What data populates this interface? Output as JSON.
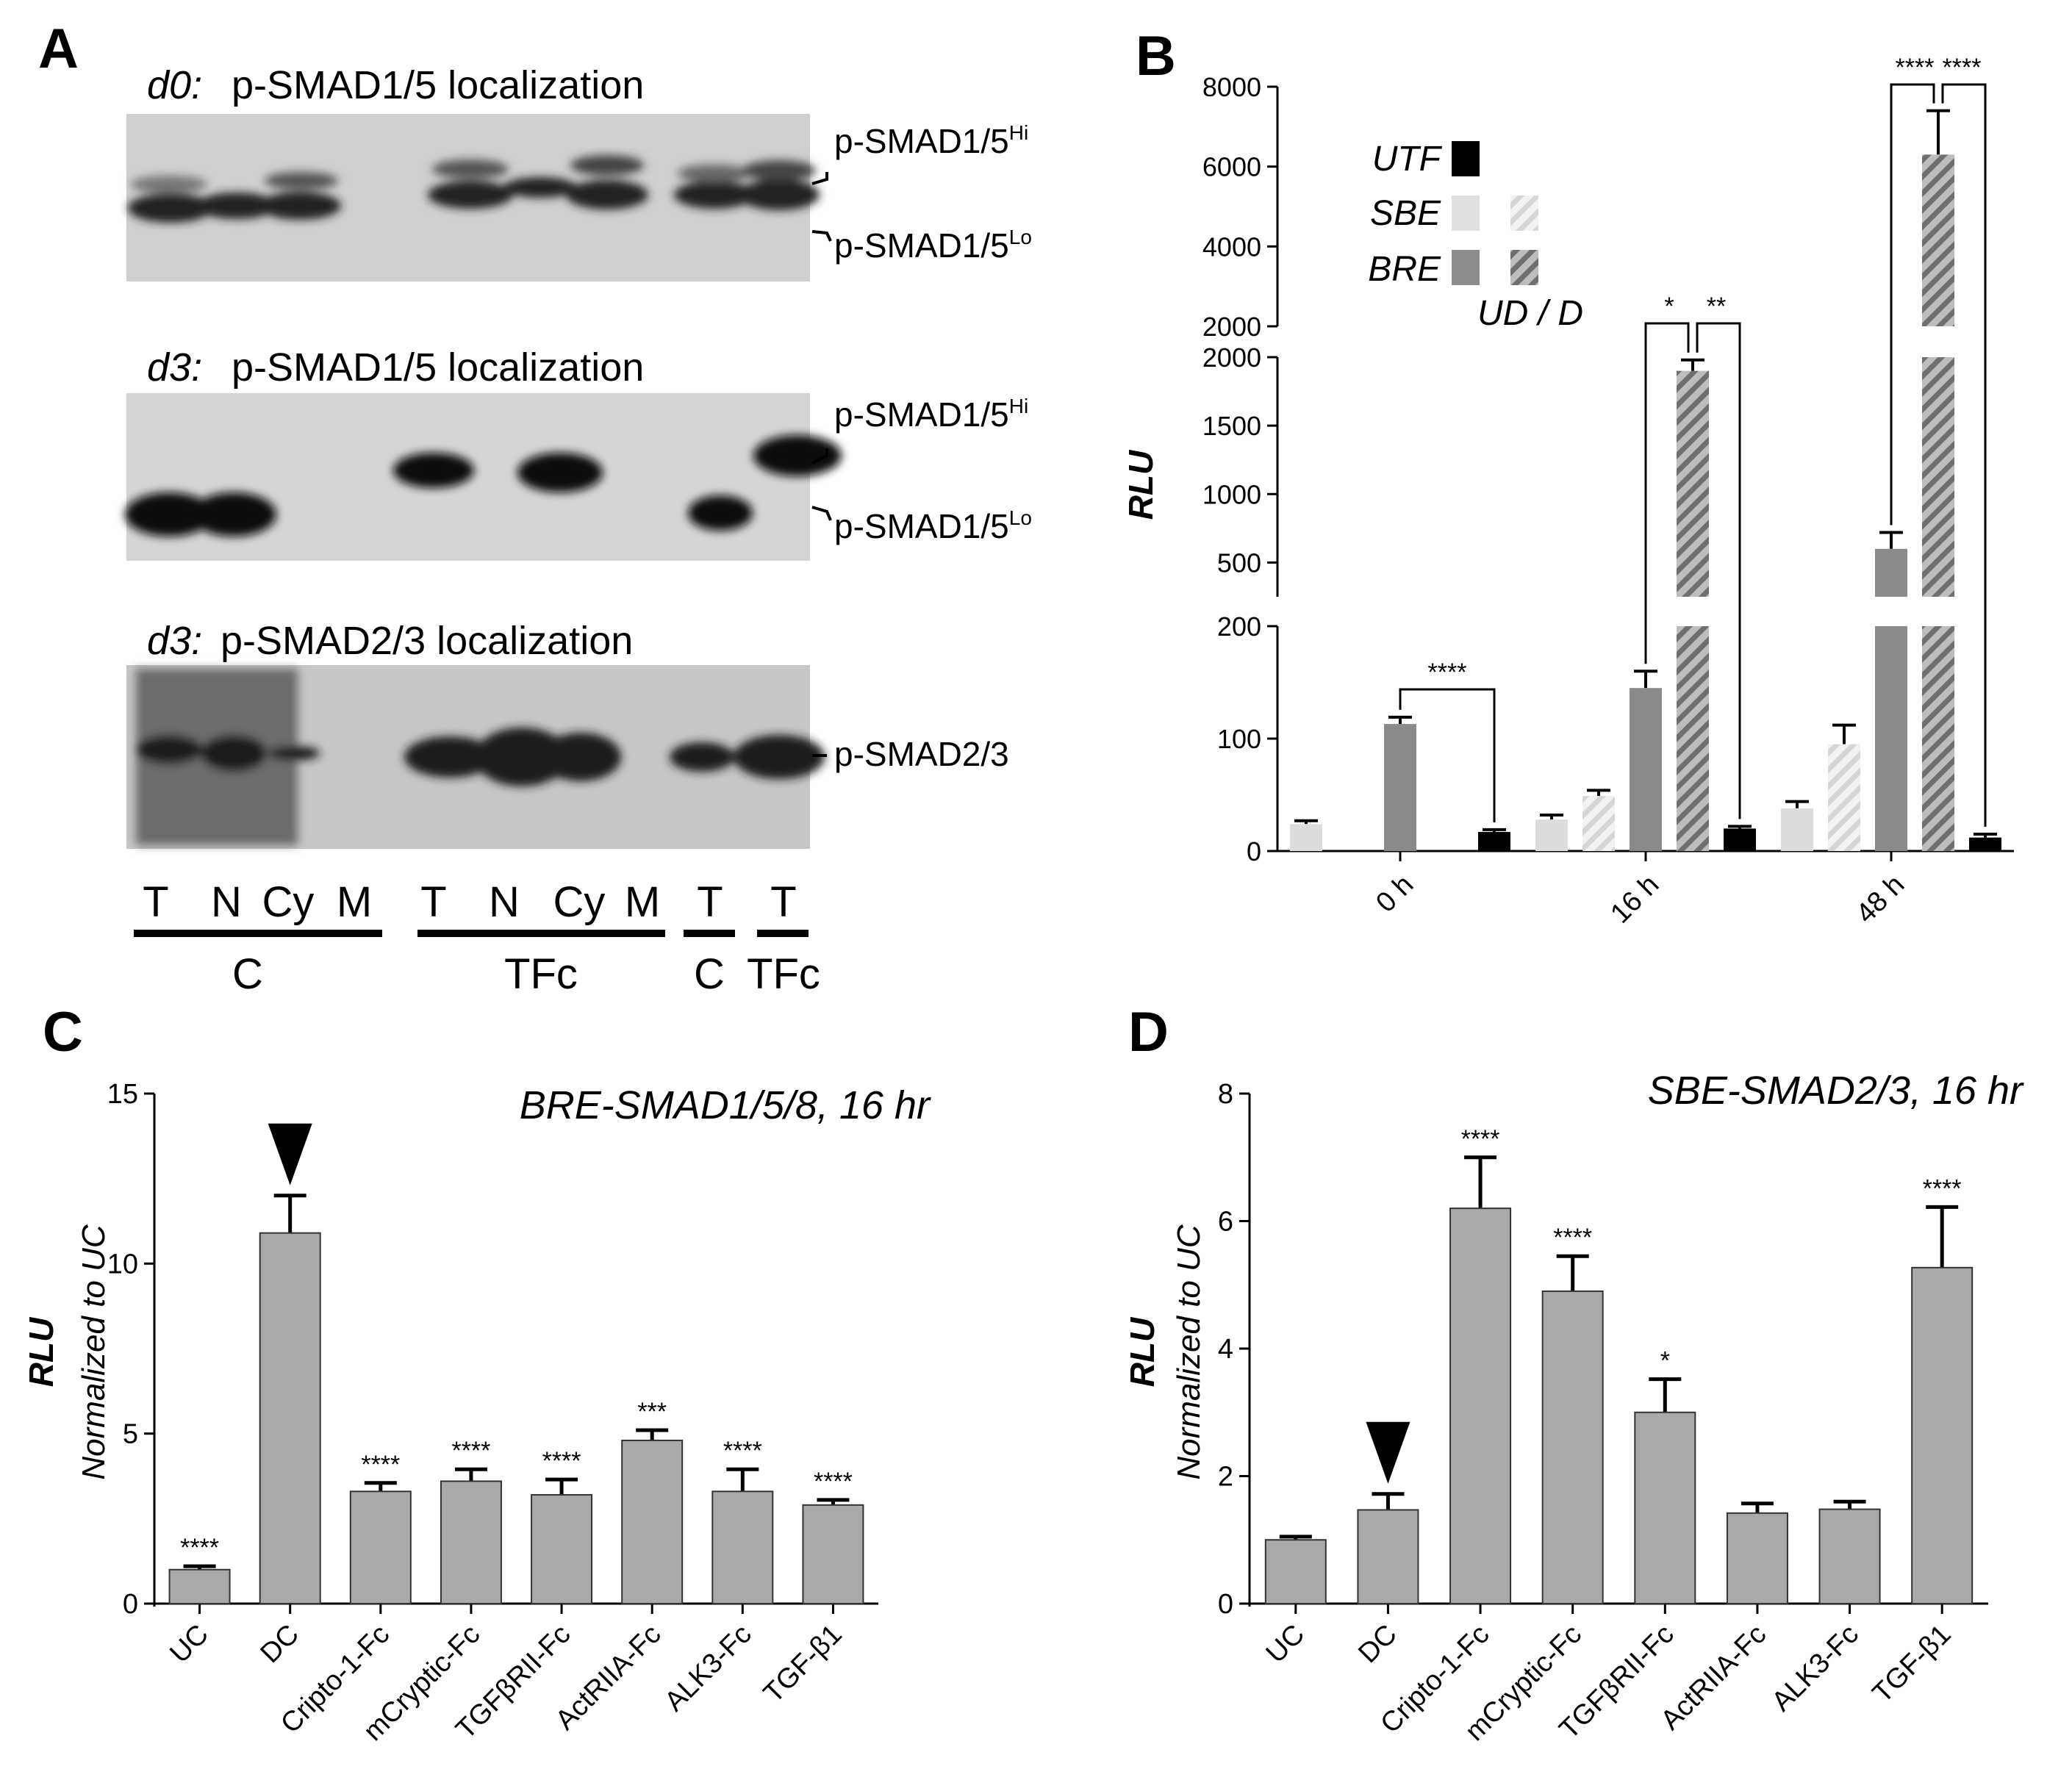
{
  "figure": {
    "panel_labels": {
      "a": "A",
      "b": "B",
      "c": "C",
      "d": "D"
    }
  },
  "panel_a": {
    "blots": [
      {
        "day": "d0:",
        "title": "p-SMAD1/5 localization",
        "bands": [
          "p-SMAD1/5",
          "p-SMAD1/5"
        ],
        "sups": [
          "Hi",
          "Lo"
        ]
      },
      {
        "day": "d3:",
        "title": "p-SMAD1/5 localization",
        "bands": [
          "p-SMAD1/5",
          "p-SMAD1/5"
        ],
        "sups": [
          "Hi",
          "Lo"
        ]
      },
      {
        "day": "d3:",
        "title": "p-SMAD2/3 localization",
        "bands": [
          "p-SMAD2/3"
        ],
        "sups": []
      }
    ],
    "lanes": [
      "T",
      "N",
      "Cy",
      "M",
      "T",
      "N",
      "Cy",
      "M",
      "T",
      "T"
    ],
    "groups": [
      "C",
      "TFc",
      "C",
      "TFc"
    ]
  },
  "chart_data": [
    {
      "panel": "B",
      "type": "bar",
      "ylabel": "RLU",
      "categories": [
        "0 h",
        "16 h",
        "48 h"
      ],
      "axis_segments": [
        {
          "range": [
            0,
            200
          ],
          "ticks": [
            0,
            100,
            200
          ]
        },
        {
          "range": [
            250,
            2000
          ],
          "ticks": [
            500,
            1000,
            1500,
            2000
          ]
        },
        {
          "range": [
            2000,
            8000
          ],
          "ticks": [
            2000,
            4000,
            6000,
            8000
          ]
        }
      ],
      "legend": {
        "rows": [
          {
            "label": "UTF",
            "colors": [
              "#000000"
            ]
          },
          {
            "label": "SBE",
            "colors": [
              "#e0e0e0",
              "#e0e0e0"
            ]
          },
          {
            "label": "BRE",
            "colors": [
              "#8c8c8c",
              "#8c8c8c"
            ]
          }
        ],
        "note": "UD / D",
        "placement": "top-left"
      },
      "series": [
        {
          "name": "SBE UD",
          "color": "#dcdcdc",
          "hatched": false,
          "values": [
            24,
            28,
            38
          ],
          "errors": [
            3,
            4,
            6
          ]
        },
        {
          "name": "SBE D",
          "color": "#dcdcdc",
          "hatched": true,
          "values": [
            null,
            49,
            95
          ],
          "errors": [
            null,
            5,
            17
          ]
        },
        {
          "name": "BRE UD",
          "color": "#8a8a8a",
          "hatched": false,
          "values": [
            113,
            145,
            600
          ],
          "errors": [
            6,
            15,
            120
          ]
        },
        {
          "name": "BRE D",
          "color": "#8a8a8a",
          "hatched": true,
          "values": [
            null,
            1900,
            6300
          ],
          "errors": [
            null,
            80,
            1100
          ]
        },
        {
          "name": "UTF",
          "color": "#000000",
          "hatched": false,
          "values": [
            17,
            20,
            12
          ],
          "errors": [
            2,
            2,
            3
          ]
        }
      ],
      "annotations": [
        {
          "label": "****",
          "group": 0,
          "from": "BRE UD",
          "to": "UTF"
        },
        {
          "label": "*",
          "group": 1,
          "from": "BRE UD",
          "to": "BRE D"
        },
        {
          "label": "**",
          "group": 1,
          "from": "BRE D",
          "to": "UTF"
        },
        {
          "label": "****",
          "group": 2,
          "from": "BRE UD",
          "to": "BRE D"
        },
        {
          "label": "****",
          "group": 2,
          "from": "BRE D",
          "to": "UTF"
        }
      ]
    },
    {
      "panel": "C",
      "type": "bar",
      "title": "BRE-SMAD1/5/8, 16 hr",
      "ylabel": "RLU",
      "ylabel2": "Normalized to UC",
      "ylim": [
        0,
        15
      ],
      "yticks": [
        0,
        5,
        10,
        15
      ],
      "categories": [
        "UC",
        "DC",
        "Cripto-1-Fc",
        "mCryptic-Fc",
        "TGFβRII-Fc",
        "ActRIIA-Fc",
        "ALK3-Fc",
        "TGF-β1"
      ],
      "values": [
        1.0,
        10.9,
        3.3,
        3.6,
        3.2,
        4.8,
        3.3,
        2.9
      ],
      "errors": [
        0.1,
        1.1,
        0.25,
        0.35,
        0.45,
        0.3,
        0.65,
        0.15
      ],
      "significance": [
        "****",
        "",
        "****",
        "****",
        "****",
        "***",
        "****",
        "****"
      ],
      "reference_marker": "DC"
    },
    {
      "panel": "D",
      "type": "bar",
      "title": "SBE-SMAD2/3, 16 hr",
      "ylabel": "RLU",
      "ylabel2": "Normalized to UC",
      "ylim": [
        0,
        8
      ],
      "yticks": [
        0,
        2,
        4,
        6,
        8
      ],
      "categories": [
        "UC",
        "DC",
        "Cripto-1-Fc",
        "mCryptic-Fc",
        "TGFβRII-Fc",
        "ActRIIA-Fc",
        "ALK3-Fc",
        "TGF-β1"
      ],
      "values": [
        1.0,
        1.47,
        6.2,
        4.9,
        3.0,
        1.42,
        1.48,
        5.27
      ],
      "errors": [
        0.05,
        0.25,
        0.8,
        0.55,
        0.52,
        0.15,
        0.12,
        0.95
      ],
      "significance": [
        "",
        "",
        "****",
        "****",
        "*",
        "",
        "",
        "****"
      ],
      "reference_marker": "DC"
    }
  ]
}
